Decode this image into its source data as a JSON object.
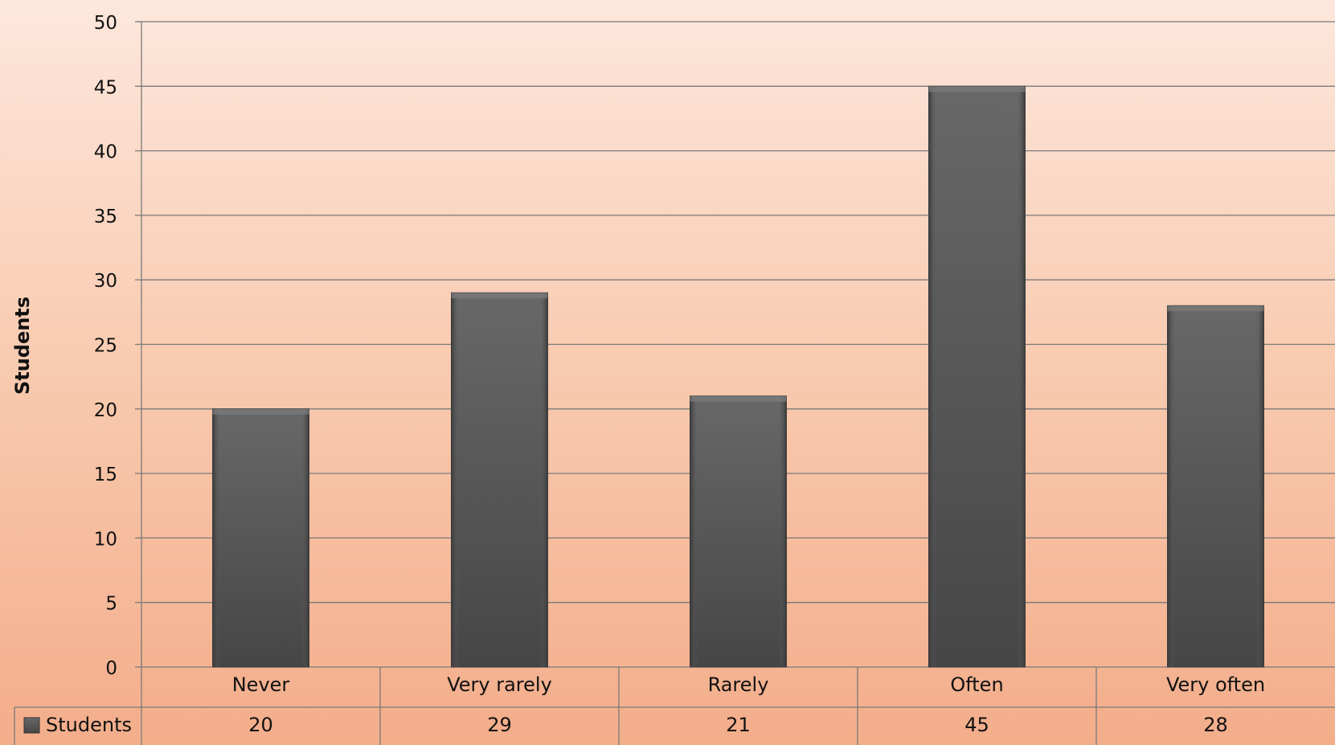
{
  "chart_data": {
    "type": "bar",
    "ylabel": "Students",
    "ylim": [
      0,
      50
    ],
    "yticks": [
      0,
      5,
      10,
      15,
      20,
      25,
      30,
      35,
      40,
      45,
      50
    ],
    "categories": [
      "Never",
      "Very rarely",
      "Rarely",
      "Often",
      "Very often"
    ],
    "series": [
      {
        "name": "Students",
        "values": [
          20,
          29,
          21,
          45,
          28
        ]
      }
    ],
    "data_table": true,
    "legend": "data-table-left",
    "grid": true,
    "colors": {
      "bar_top": "#6a6a6a",
      "bar_bottom": "#454545",
      "gridline": "#7a7a7a"
    }
  }
}
